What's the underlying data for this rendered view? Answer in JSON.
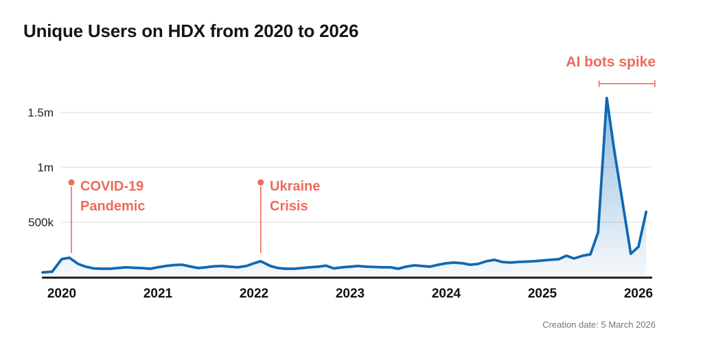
{
  "title": "Unique Users on HDX from 2020 to 2026",
  "footer": {
    "creation_date": "Creation date: 5 March 2026"
  },
  "colors": {
    "line_blue": "#1168b3",
    "annotation_red": "#ee6a5a",
    "gridline": "#d8d8d8",
    "axis_black": "#1a1a1a",
    "tick_text": "#222222",
    "footer_gray": "#757575"
  },
  "chart_data": {
    "type": "area",
    "title": "Unique Users on HDX from 2020 to 2026",
    "xlabel": "",
    "ylabel": "",
    "unit_note": "values_k are unique users in thousands; x is decimal year (monthly points)",
    "xlim": [
      2019.8,
      2026.35
    ],
    "ylim_k": [
      0,
      1650
    ],
    "grid": "horizontal",
    "x_ticks": [
      {
        "v": 2020,
        "label": "2020"
      },
      {
        "v": 2021,
        "label": "2021"
      },
      {
        "v": 2022,
        "label": "2022"
      },
      {
        "v": 2023,
        "label": "2023"
      },
      {
        "v": 2024,
        "label": "2024"
      },
      {
        "v": 2025,
        "label": "2025"
      },
      {
        "v": 2026,
        "label": "2026"
      }
    ],
    "y_ticks": [
      {
        "v": 500,
        "label": "500k"
      },
      {
        "v": 1000,
        "label": "1m"
      },
      {
        "v": 1500,
        "label": "1.5m"
      }
    ],
    "x": [
      2019.8,
      2019.9,
      2020.0,
      2020.08,
      2020.17,
      2020.25,
      2020.33,
      2020.42,
      2020.5,
      2020.58,
      2020.67,
      2020.75,
      2020.83,
      2020.92,
      2021.0,
      2021.08,
      2021.17,
      2021.25,
      2021.33,
      2021.42,
      2021.5,
      2021.58,
      2021.67,
      2021.75,
      2021.83,
      2021.92,
      2022.0,
      2022.07,
      2022.17,
      2022.25,
      2022.33,
      2022.42,
      2022.5,
      2022.58,
      2022.67,
      2022.75,
      2022.83,
      2022.92,
      2023.0,
      2023.08,
      2023.17,
      2023.25,
      2023.33,
      2023.42,
      2023.5,
      2023.58,
      2023.67,
      2023.75,
      2023.83,
      2023.92,
      2024.0,
      2024.08,
      2024.17,
      2024.25,
      2024.33,
      2024.42,
      2024.5,
      2024.58,
      2024.67,
      2024.75,
      2024.83,
      2024.92,
      2025.0,
      2025.08,
      2025.17,
      2025.25,
      2025.33,
      2025.42,
      2025.5,
      2025.58,
      2025.67,
      2025.75,
      2025.83,
      2025.92,
      2026.0,
      2026.08
    ],
    "values_k": [
      41,
      48,
      163,
      175,
      119,
      94,
      78,
      75,
      75,
      81,
      88,
      84,
      81,
      75,
      88,
      100,
      109,
      112,
      97,
      81,
      88,
      97,
      100,
      94,
      88,
      100,
      125,
      144,
      100,
      81,
      75,
      75,
      81,
      88,
      94,
      103,
      78,
      88,
      94,
      100,
      94,
      91,
      88,
      88,
      75,
      94,
      106,
      100,
      94,
      112,
      125,
      131,
      125,
      112,
      119,
      144,
      156,
      137,
      131,
      137,
      140,
      144,
      150,
      156,
      162,
      194,
      169,
      194,
      206,
      406,
      1631,
      1144,
      706,
      212,
      275,
      594
    ],
    "annotations": [
      {
        "id": "covid",
        "lines": [
          "COVID-19",
          "Pandemic"
        ],
        "marker_year": 2020.1,
        "marker_value_k": 862,
        "pointer_to_k": 219
      },
      {
        "id": "ukraine",
        "lines": [
          "Ukraine",
          "Crisis"
        ],
        "marker_year": 2022.07,
        "marker_value_k": 862,
        "pointer_to_k": 219
      },
      {
        "id": "ai",
        "lines": [
          "AI bots spike"
        ],
        "bracket": {
          "from_year": 2025.59,
          "to_year": 2026.17,
          "value_k": 1762
        }
      }
    ]
  }
}
